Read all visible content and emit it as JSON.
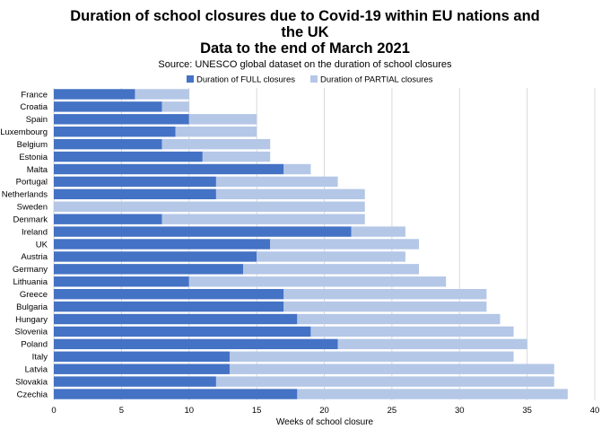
{
  "chart_data": {
    "type": "bar",
    "orientation": "horizontal",
    "stacked": true,
    "title_lines": [
      "Duration of school closures due to Covid-19 within EU nations and",
      "the UK",
      "Data to the end of March 2021"
    ],
    "subtitle": "Source: UNESCO global dataset on the duration of school closures",
    "xlabel": "Weeks of school closure",
    "ylabel": "",
    "xlim": [
      0,
      40
    ],
    "xticks": [
      "0",
      "5",
      "10",
      "15",
      "20",
      "25",
      "30",
      "35",
      "40"
    ],
    "grid": true,
    "legend_position": "top-right",
    "categories": [
      "France",
      "Croatia",
      "Spain",
      "Luxembourg",
      "Belgium",
      "Estonia",
      "Malta",
      "Portugal",
      "Netherlands",
      "Sweden",
      "Denmark",
      "Ireland",
      "UK",
      "Austria",
      "Germany",
      "Lithuania",
      "Greece",
      "Bulgaria",
      "Hungary",
      "Slovenia",
      "Poland",
      "Italy",
      "Latvia",
      "Slovakia",
      "Czechia"
    ],
    "series": [
      {
        "name": "Duration of FULL closures",
        "color": "#4472c4",
        "values": [
          6,
          8,
          10,
          9,
          8,
          11,
          17,
          12,
          12,
          0,
          8,
          22,
          16,
          15,
          14,
          10,
          17,
          17,
          18,
          19,
          21,
          13,
          13,
          12,
          18
        ]
      },
      {
        "name": "Duration of PARTIAL closures",
        "color": "#b4c7e7",
        "values": [
          4,
          2,
          5,
          6,
          8,
          5,
          2,
          9,
          11,
          23,
          15,
          4,
          11,
          11,
          13,
          19,
          15,
          15,
          15,
          15,
          14,
          21,
          24,
          25,
          20
        ]
      }
    ]
  }
}
